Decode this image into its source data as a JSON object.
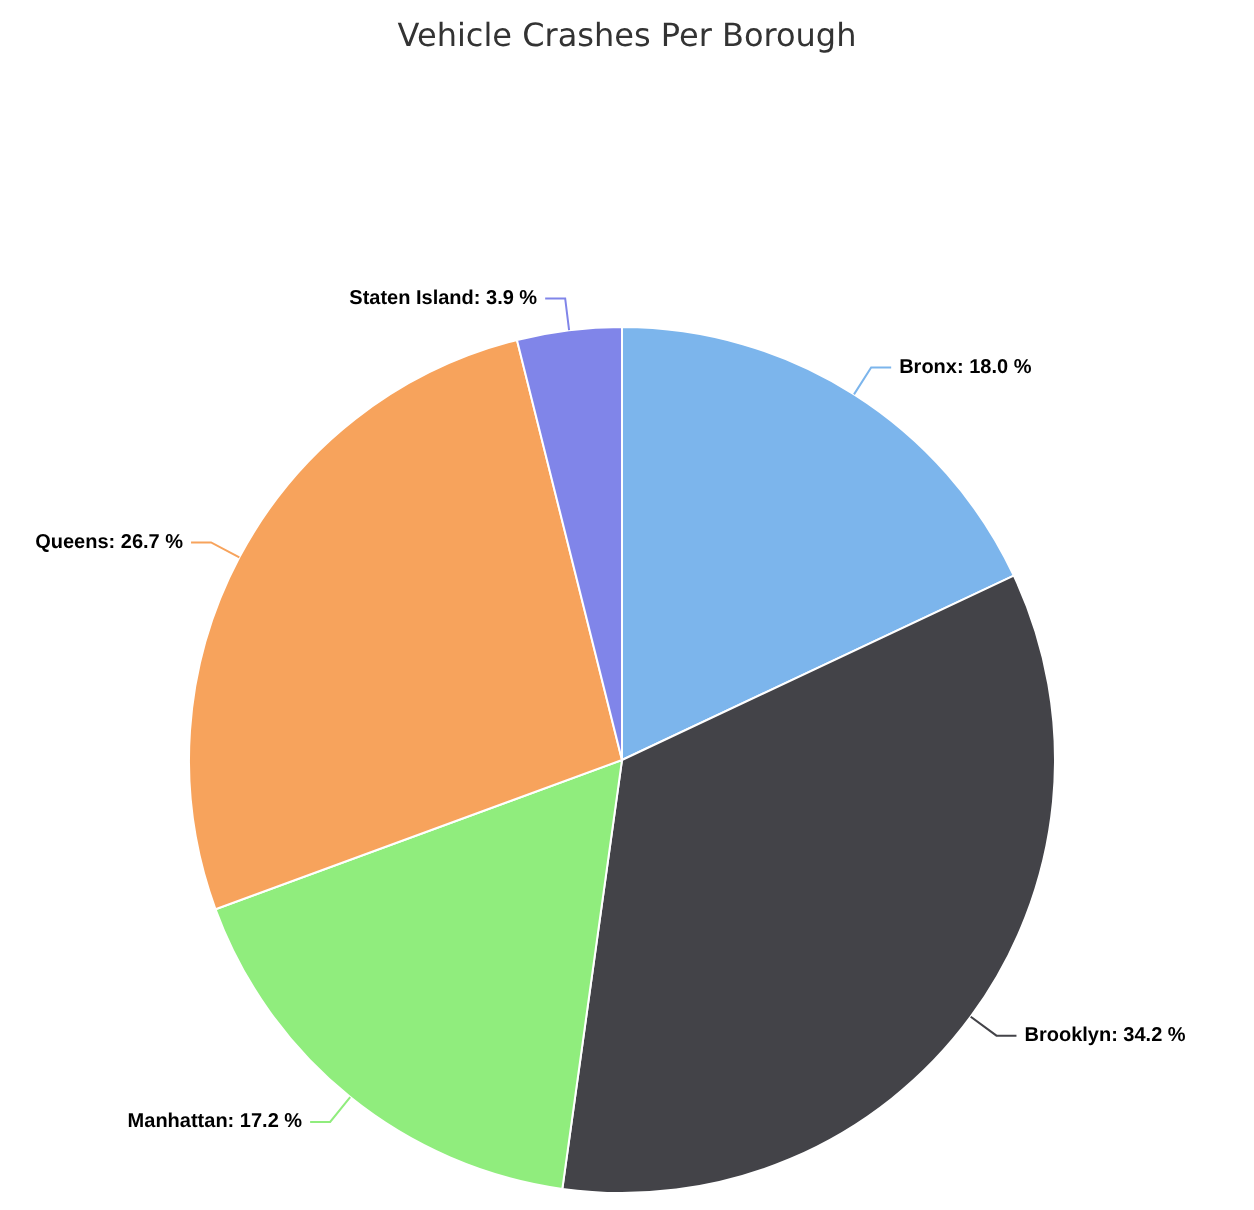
{
  "chart_data": {
    "type": "pie",
    "title": "Vehicle Crashes Per Borough",
    "categories": [
      "Bronx",
      "Brooklyn",
      "Manhattan",
      "Queens",
      "Staten Island"
    ],
    "values": [
      18.0,
      34.2,
      17.2,
      26.7,
      3.9
    ],
    "value_labels": [
      "18.0 %",
      "34.2 %",
      "17.2 %",
      "26.7 %",
      "3.9 %"
    ],
    "colors": [
      "#7cb5ec",
      "#434348",
      "#90ed7d",
      "#f7a35c",
      "#8085e9"
    ],
    "legend": false
  }
}
